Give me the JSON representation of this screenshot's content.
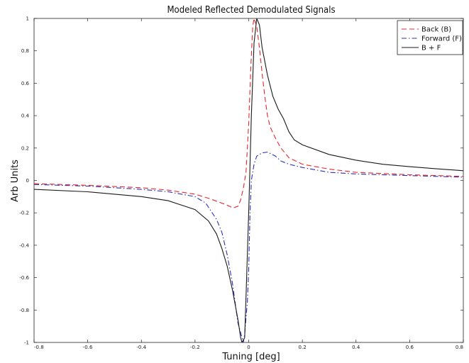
{
  "chart_data": {
    "type": "line",
    "title": "Modeled Reflected Demodulated Signals",
    "xlabel": "Tuning [deg]",
    "ylabel": "Arb Units",
    "xlim": [
      -0.8,
      0.8
    ],
    "ylim": [
      -1,
      1
    ],
    "xticks": [
      -0.8,
      -0.6,
      -0.4,
      -0.2,
      0,
      0.2,
      0.4,
      0.6,
      0.8
    ],
    "yticks": [
      -1,
      -0.8,
      -0.6,
      -0.4,
      -0.2,
      0,
      0.2,
      0.4,
      0.6,
      0.8,
      1
    ],
    "xtick_labels": [
      "-0.8",
      "-0.6",
      "-0.4",
      "-0.2",
      "0",
      "0.2",
      "0.4",
      "0.6",
      "0.8"
    ],
    "ytick_labels": [
      "-1",
      "-0.8",
      "-0.6",
      "-0.4",
      "-0.2",
      "0",
      "0.2",
      "0.4",
      "0.6",
      "0.8",
      "1"
    ],
    "grid": false,
    "legend_position": "top-right",
    "series": [
      {
        "name": "Back (B)",
        "color": "#e8262b",
        "dash": "dashed",
        "points": [
          [
            -0.8,
            -0.02
          ],
          [
            -0.6,
            -0.03
          ],
          [
            -0.4,
            -0.045
          ],
          [
            -0.3,
            -0.06
          ],
          [
            -0.2,
            -0.085
          ],
          [
            -0.15,
            -0.11
          ],
          [
            -0.1,
            -0.14
          ],
          [
            -0.07,
            -0.16
          ],
          [
            -0.06,
            -0.17
          ],
          [
            -0.04,
            -0.16
          ],
          [
            -0.03,
            -0.12
          ],
          [
            -0.02,
            -0.05
          ],
          [
            -0.01,
            0.05
          ],
          [
            0,
            0.35
          ],
          [
            0.008,
            0.7
          ],
          [
            0.015,
            0.95
          ],
          [
            0.02,
            1.0
          ],
          [
            0.03,
            0.95
          ],
          [
            0.04,
            0.82
          ],
          [
            0.05,
            0.66
          ],
          [
            0.06,
            0.52
          ],
          [
            0.07,
            0.4
          ],
          [
            0.08,
            0.33
          ],
          [
            0.1,
            0.26
          ],
          [
            0.12,
            0.2
          ],
          [
            0.15,
            0.14
          ],
          [
            0.2,
            0.1
          ],
          [
            0.3,
            0.07
          ],
          [
            0.4,
            0.05
          ],
          [
            0.6,
            0.035
          ],
          [
            0.8,
            0.025
          ]
        ]
      },
      {
        "name": "Forward (F)",
        "color": "#2a2fb8",
        "dash": "dashdot",
        "points": [
          [
            -0.8,
            -0.025
          ],
          [
            -0.6,
            -0.035
          ],
          [
            -0.4,
            -0.055
          ],
          [
            -0.3,
            -0.07
          ],
          [
            -0.2,
            -0.1
          ],
          [
            -0.16,
            -0.14
          ],
          [
            -0.12,
            -0.24
          ],
          [
            -0.1,
            -0.32
          ],
          [
            -0.08,
            -0.46
          ],
          [
            -0.06,
            -0.64
          ],
          [
            -0.04,
            -0.88
          ],
          [
            -0.02,
            -1.0
          ],
          [
            -0.015,
            -0.95
          ],
          [
            -0.005,
            -0.75
          ],
          [
            0,
            -0.55
          ],
          [
            0.005,
            -0.2
          ],
          [
            0.01,
            0.0
          ],
          [
            0.02,
            0.1
          ],
          [
            0.03,
            0.15
          ],
          [
            0.05,
            0.17
          ],
          [
            0.07,
            0.175
          ],
          [
            0.1,
            0.15
          ],
          [
            0.12,
            0.12
          ],
          [
            0.15,
            0.1
          ],
          [
            0.2,
            0.08
          ],
          [
            0.3,
            0.05
          ],
          [
            0.4,
            0.04
          ],
          [
            0.6,
            0.03
          ],
          [
            0.8,
            0.02
          ]
        ]
      },
      {
        "name": "B + F",
        "color": "#1a1a1a",
        "dash": "solid",
        "points": [
          [
            -0.8,
            -0.055
          ],
          [
            -0.6,
            -0.07
          ],
          [
            -0.4,
            -0.1
          ],
          [
            -0.3,
            -0.125
          ],
          [
            -0.2,
            -0.18
          ],
          [
            -0.15,
            -0.25
          ],
          [
            -0.12,
            -0.33
          ],
          [
            -0.1,
            -0.42
          ],
          [
            -0.08,
            -0.53
          ],
          [
            -0.06,
            -0.68
          ],
          [
            -0.04,
            -0.86
          ],
          [
            -0.03,
            -0.97
          ],
          [
            -0.025,
            -1.0
          ],
          [
            -0.015,
            -0.97
          ],
          [
            -0.01,
            -0.72
          ],
          [
            0,
            -0.2
          ],
          [
            0.01,
            0.4
          ],
          [
            0.02,
            0.85
          ],
          [
            0.03,
            1.0
          ],
          [
            0.04,
            0.96
          ],
          [
            0.05,
            0.82
          ],
          [
            0.07,
            0.65
          ],
          [
            0.09,
            0.52
          ],
          [
            0.11,
            0.44
          ],
          [
            0.13,
            0.38
          ],
          [
            0.15,
            0.3
          ],
          [
            0.17,
            0.25
          ],
          [
            0.2,
            0.22
          ],
          [
            0.3,
            0.16
          ],
          [
            0.4,
            0.125
          ],
          [
            0.5,
            0.1
          ],
          [
            0.6,
            0.085
          ],
          [
            0.7,
            0.072
          ],
          [
            0.8,
            0.06
          ]
        ]
      }
    ]
  }
}
